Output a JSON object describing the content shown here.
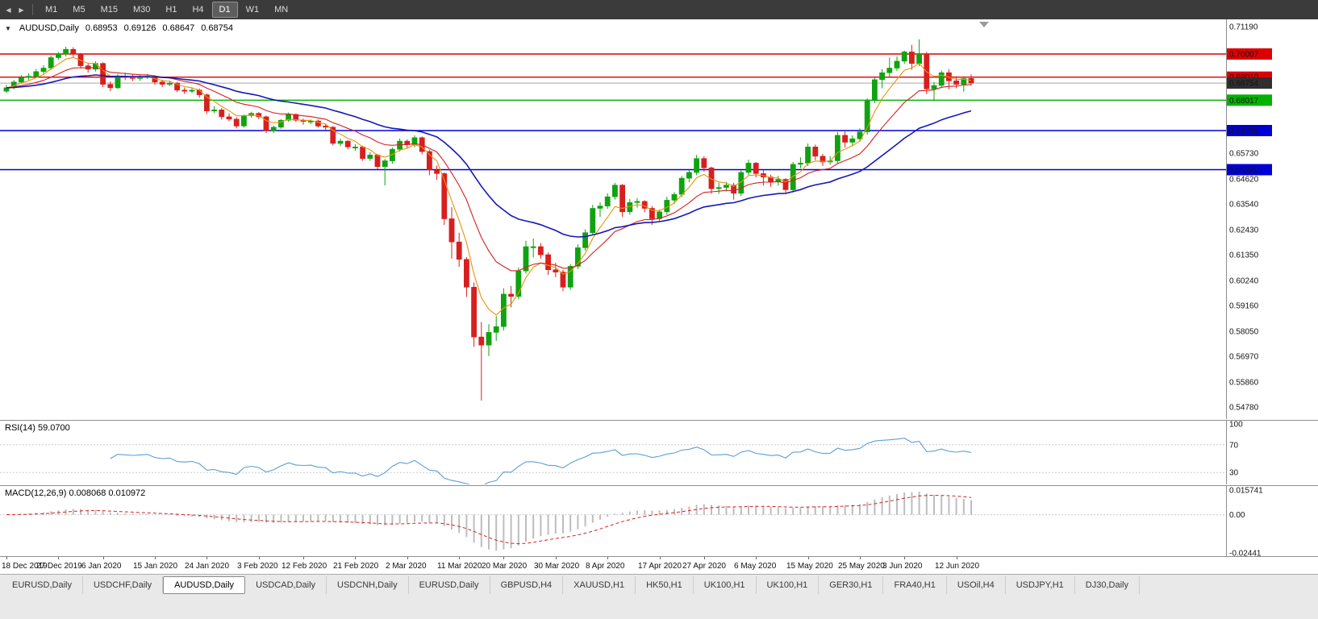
{
  "toolbar": {
    "nav_left": "◀",
    "nav_right": "▶",
    "timeframes": [
      {
        "label": "M1",
        "active": false
      },
      {
        "label": "M5",
        "active": false
      },
      {
        "label": "M15",
        "active": false
      },
      {
        "label": "M30",
        "active": false
      },
      {
        "label": "H1",
        "active": false
      },
      {
        "label": "H4",
        "active": false
      },
      {
        "label": "D1",
        "active": true
      },
      {
        "label": "W1",
        "active": false
      },
      {
        "label": "MN",
        "active": false
      }
    ]
  },
  "chart_header": {
    "collapse_icon": "▼",
    "symbol": "AUDUSD,Daily",
    "open": "0.68953",
    "high": "0.69126",
    "low": "0.68647",
    "close": "0.68754"
  },
  "chart_data": {
    "type": "candlestick",
    "symbol": "AUDUSD",
    "timeframe": "Daily",
    "y_top": 0.7119,
    "y_bottom": 0.5478,
    "y_axis_labels": [
      "0.71190",
      "0.70110",
      "0.69000",
      "0.67920",
      "0.66810",
      "0.65730",
      "0.64620",
      "0.63540",
      "0.62430",
      "0.61350",
      "0.60240",
      "0.59160",
      "0.58050",
      "0.56970",
      "0.55860",
      "0.54780"
    ],
    "x_labels": [
      "18 Dec 2019",
      "27 Dec 2019",
      "6 Jan 2020",
      "15 Jan 2020",
      "24 Jan 2020",
      "3 Feb 2020",
      "12 Feb 2020",
      "21 Feb 2020",
      "2 Mar 2020",
      "11 Mar 2020",
      "20 Mar 2020",
      "30 Mar 2020",
      "8 Apr 2020",
      "17 Apr 2020",
      "27 Apr 2020",
      "6 May 2020",
      "15 May 2020",
      "25 May 2020",
      "3 Jun 2020",
      "12 Jun 2020"
    ],
    "hlines": [
      {
        "value": 0.70007,
        "label": "0.70007",
        "color": "#dd0000",
        "type": "resistance"
      },
      {
        "value": 0.6901,
        "label": "0.69010",
        "color": "#dd0000",
        "type": "resistance"
      },
      {
        "value": 0.68017,
        "label": "0.68017",
        "color": "#00b200",
        "type": "support"
      },
      {
        "value": 0.66706,
        "label": "0.66706",
        "color": "#0000d4",
        "type": "support"
      },
      {
        "value": 0.6502,
        "label": "0.65020",
        "color": "#0000d4",
        "type": "support"
      }
    ],
    "bid_line": {
      "value": 0.68754,
      "label": "0.68754",
      "color": "#2f2f2f"
    },
    "ma_periods": [
      5,
      13,
      30
    ],
    "ma_colors": [
      "#e8940a",
      "#d42020",
      "#1717b8"
    ],
    "candle_colors": {
      "bull": "#0fa30f",
      "bear": "#d81f1f"
    },
    "ohlc": [
      [
        0.684,
        0.6868,
        0.6832,
        0.6855
      ],
      [
        0.6855,
        0.6888,
        0.6848,
        0.688
      ],
      [
        0.688,
        0.691,
        0.6872,
        0.69
      ],
      [
        0.69,
        0.6918,
        0.6888,
        0.6905
      ],
      [
        0.6905,
        0.6936,
        0.6898,
        0.6925
      ],
      [
        0.6925,
        0.6952,
        0.6916,
        0.694
      ],
      [
        0.694,
        0.6995,
        0.6932,
        0.6985
      ],
      [
        0.6985,
        0.701,
        0.6975,
        0.7
      ],
      [
        0.7,
        0.7032,
        0.699,
        0.7021
      ],
      [
        0.7021,
        0.703,
        0.6988,
        0.7
      ],
      [
        0.7,
        0.7005,
        0.6938,
        0.695
      ],
      [
        0.695,
        0.6962,
        0.692,
        0.6935
      ],
      [
        0.6935,
        0.697,
        0.6925,
        0.696
      ],
      [
        0.696,
        0.6965,
        0.6858,
        0.687
      ],
      [
        0.687,
        0.6882,
        0.684,
        0.6855
      ],
      [
        0.6855,
        0.6915,
        0.685,
        0.6905
      ],
      [
        0.6905,
        0.692,
        0.6888,
        0.69
      ],
      [
        0.69,
        0.6912,
        0.6884,
        0.6895
      ],
      [
        0.6895,
        0.691,
        0.6885,
        0.69
      ],
      [
        0.69,
        0.6915,
        0.6893,
        0.6905
      ],
      [
        0.6905,
        0.691,
        0.6868,
        0.688
      ],
      [
        0.688,
        0.689,
        0.6858,
        0.687
      ],
      [
        0.687,
        0.6886,
        0.6862,
        0.6875
      ],
      [
        0.6875,
        0.688,
        0.6836,
        0.6845
      ],
      [
        0.6845,
        0.6856,
        0.6828,
        0.684
      ],
      [
        0.684,
        0.6855,
        0.6832,
        0.6845
      ],
      [
        0.6845,
        0.6852,
        0.6812,
        0.6825
      ],
      [
        0.6825,
        0.683,
        0.6742,
        0.6755
      ],
      [
        0.6755,
        0.6775,
        0.6746,
        0.676
      ],
      [
        0.676,
        0.6768,
        0.6718,
        0.673
      ],
      [
        0.673,
        0.6745,
        0.671,
        0.672
      ],
      [
        0.672,
        0.6728,
        0.668,
        0.669
      ],
      [
        0.669,
        0.674,
        0.6683,
        0.6735
      ],
      [
        0.6735,
        0.6752,
        0.6726,
        0.6745
      ],
      [
        0.6745,
        0.675,
        0.672,
        0.673
      ],
      [
        0.673,
        0.6735,
        0.666,
        0.667
      ],
      [
        0.667,
        0.6692,
        0.666,
        0.6685
      ],
      [
        0.6685,
        0.672,
        0.6678,
        0.6715
      ],
      [
        0.6715,
        0.6748,
        0.6708,
        0.674
      ],
      [
        0.674,
        0.6745,
        0.6708,
        0.6715
      ],
      [
        0.6715,
        0.6722,
        0.6696,
        0.671
      ],
      [
        0.671,
        0.6718,
        0.6698,
        0.6712
      ],
      [
        0.6712,
        0.6718,
        0.6683,
        0.669
      ],
      [
        0.669,
        0.6698,
        0.6674,
        0.6685
      ],
      [
        0.6685,
        0.669,
        0.6606,
        0.6615
      ],
      [
        0.6615,
        0.6635,
        0.6603,
        0.6625
      ],
      [
        0.6625,
        0.663,
        0.659,
        0.66
      ],
      [
        0.66,
        0.6612,
        0.6583,
        0.66
      ],
      [
        0.66,
        0.6605,
        0.654,
        0.655
      ],
      [
        0.655,
        0.6578,
        0.654,
        0.6565
      ],
      [
        0.6565,
        0.657,
        0.6503,
        0.6515
      ],
      [
        0.6515,
        0.6548,
        0.6434,
        0.654
      ],
      [
        0.654,
        0.6598,
        0.6528,
        0.659
      ],
      [
        0.659,
        0.6636,
        0.658,
        0.6625
      ],
      [
        0.6625,
        0.6632,
        0.6593,
        0.661
      ],
      [
        0.661,
        0.665,
        0.6598,
        0.664
      ],
      [
        0.664,
        0.6645,
        0.6568,
        0.658
      ],
      [
        0.658,
        0.6588,
        0.6478,
        0.65
      ],
      [
        0.65,
        0.652,
        0.6458,
        0.6485
      ],
      [
        0.6485,
        0.649,
        0.6263,
        0.629
      ],
      [
        0.629,
        0.634,
        0.6118,
        0.619
      ],
      [
        0.619,
        0.623,
        0.6083,
        0.6115
      ],
      [
        0.6115,
        0.6125,
        0.5953,
        0.5995
      ],
      [
        0.5995,
        0.6015,
        0.5738,
        0.578
      ],
      [
        0.578,
        0.5845,
        0.5506,
        0.5745
      ],
      [
        0.5745,
        0.5835,
        0.5698,
        0.58
      ],
      [
        0.58,
        0.587,
        0.5763,
        0.5825
      ],
      [
        0.5825,
        0.599,
        0.5808,
        0.5965
      ],
      [
        0.5965,
        0.6,
        0.5908,
        0.5955
      ],
      [
        0.5955,
        0.608,
        0.5943,
        0.6065
      ],
      [
        0.6065,
        0.6195,
        0.6053,
        0.617
      ],
      [
        0.617,
        0.6205,
        0.6123,
        0.617
      ],
      [
        0.617,
        0.6185,
        0.6118,
        0.6135
      ],
      [
        0.6135,
        0.6145,
        0.6048,
        0.607
      ],
      [
        0.607,
        0.61,
        0.6038,
        0.606
      ],
      [
        0.606,
        0.607,
        0.5978,
        0.5995
      ],
      [
        0.5995,
        0.6095,
        0.5983,
        0.6085
      ],
      [
        0.6085,
        0.618,
        0.6073,
        0.6165
      ],
      [
        0.6165,
        0.6245,
        0.6153,
        0.623
      ],
      [
        0.623,
        0.635,
        0.6218,
        0.6335
      ],
      [
        0.6335,
        0.636,
        0.6298,
        0.6345
      ],
      [
        0.6345,
        0.64,
        0.6333,
        0.6385
      ],
      [
        0.6385,
        0.6445,
        0.6373,
        0.6435
      ],
      [
        0.6435,
        0.644,
        0.6298,
        0.632
      ],
      [
        0.632,
        0.6375,
        0.6308,
        0.636
      ],
      [
        0.636,
        0.638,
        0.6338,
        0.6365
      ],
      [
        0.6365,
        0.637,
        0.6318,
        0.6335
      ],
      [
        0.6335,
        0.6345,
        0.6263,
        0.629
      ],
      [
        0.629,
        0.633,
        0.6278,
        0.632
      ],
      [
        0.632,
        0.6385,
        0.6308,
        0.637
      ],
      [
        0.637,
        0.6405,
        0.6353,
        0.6395
      ],
      [
        0.6395,
        0.6475,
        0.6383,
        0.6465
      ],
      [
        0.6465,
        0.65,
        0.6448,
        0.649
      ],
      [
        0.649,
        0.6565,
        0.6478,
        0.655
      ],
      [
        0.655,
        0.656,
        0.6493,
        0.651
      ],
      [
        0.651,
        0.6515,
        0.6398,
        0.642
      ],
      [
        0.642,
        0.6445,
        0.6398,
        0.6425
      ],
      [
        0.6425,
        0.645,
        0.6408,
        0.6435
      ],
      [
        0.6435,
        0.6445,
        0.6373,
        0.64
      ],
      [
        0.64,
        0.65,
        0.6388,
        0.649
      ],
      [
        0.649,
        0.6545,
        0.6478,
        0.653
      ],
      [
        0.653,
        0.6535,
        0.6468,
        0.6485
      ],
      [
        0.6485,
        0.65,
        0.6433,
        0.647
      ],
      [
        0.647,
        0.648,
        0.6428,
        0.645
      ],
      [
        0.645,
        0.6475,
        0.6433,
        0.646
      ],
      [
        0.646,
        0.6465,
        0.6403,
        0.6415
      ],
      [
        0.6415,
        0.6535,
        0.6403,
        0.6525
      ],
      [
        0.6525,
        0.6555,
        0.6508,
        0.653
      ],
      [
        0.653,
        0.6615,
        0.6518,
        0.66
      ],
      [
        0.66,
        0.661,
        0.6543,
        0.656
      ],
      [
        0.656,
        0.657,
        0.6518,
        0.6535
      ],
      [
        0.6535,
        0.656,
        0.6523,
        0.654
      ],
      [
        0.654,
        0.6665,
        0.6528,
        0.665
      ],
      [
        0.665,
        0.667,
        0.6598,
        0.662
      ],
      [
        0.662,
        0.665,
        0.6603,
        0.6635
      ],
      [
        0.6635,
        0.668,
        0.6623,
        0.6665
      ],
      [
        0.6665,
        0.681,
        0.6653,
        0.68
      ],
      [
        0.68,
        0.69,
        0.6788,
        0.689
      ],
      [
        0.689,
        0.6935,
        0.6853,
        0.692
      ],
      [
        0.692,
        0.6985,
        0.6903,
        0.694
      ],
      [
        0.694,
        0.699,
        0.6928,
        0.697
      ],
      [
        0.697,
        0.7015,
        0.6958,
        0.701
      ],
      [
        0.701,
        0.704,
        0.6933,
        0.696
      ],
      [
        0.696,
        0.7064,
        0.6948,
        0.7
      ],
      [
        0.7,
        0.701,
        0.6828,
        0.685
      ],
      [
        0.685,
        0.688,
        0.6798,
        0.6865
      ],
      [
        0.6865,
        0.693,
        0.6853,
        0.692
      ],
      [
        0.692,
        0.6935,
        0.6848,
        0.6885
      ],
      [
        0.6885,
        0.6905,
        0.6853,
        0.687
      ],
      [
        0.687,
        0.69,
        0.6838,
        0.6895
      ],
      [
        0.68953,
        0.69126,
        0.68647,
        0.68754
      ]
    ]
  },
  "rsi_panel": {
    "title": "RSI(14) 59.0700",
    "period": 14,
    "line_color": "#5b9fd4",
    "levels": [
      {
        "label": "100",
        "value": 100
      },
      {
        "label": "70",
        "value": 70
      },
      {
        "label": "30",
        "value": 30
      }
    ]
  },
  "macd_panel": {
    "title": "MACD(12,26,9) 0.008068 0.010972",
    "fast": 12,
    "slow": 26,
    "signal": 9,
    "y_max": 0.015741,
    "y_min": -0.02441,
    "axis_labels": [
      {
        "label": "0.015741",
        "value": 0.015741
      },
      {
        "label": "0.00",
        "value": 0
      },
      {
        "label": "-0.02441",
        "value": -0.02441
      }
    ],
    "hist_color": "#bdbdbd",
    "signal_color": "#d42020"
  },
  "tabs": [
    {
      "label": "EURUSD,Daily",
      "active": false
    },
    {
      "label": "USDCHF,Daily",
      "active": false
    },
    {
      "label": "AUDUSD,Daily",
      "active": true
    },
    {
      "label": "USDCAD,Daily",
      "active": false
    },
    {
      "label": "USDCNH,Daily",
      "active": false
    },
    {
      "label": "EURUSD,Daily",
      "active": false
    },
    {
      "label": "GBPUSD,H4",
      "active": false
    },
    {
      "label": "XAUUSD,H1",
      "active": false
    },
    {
      "label": "HK50,H1",
      "active": false
    },
    {
      "label": "UK100,H1",
      "active": false
    },
    {
      "label": "UK100,H1",
      "active": false
    },
    {
      "label": "GER30,H1",
      "active": false
    },
    {
      "label": "FRA40,H1",
      "active": false
    },
    {
      "label": "USOil,H4",
      "active": false
    },
    {
      "label": "USDJPY,H1",
      "active": false
    },
    {
      "label": "DJ30,Daily",
      "active": false
    }
  ]
}
